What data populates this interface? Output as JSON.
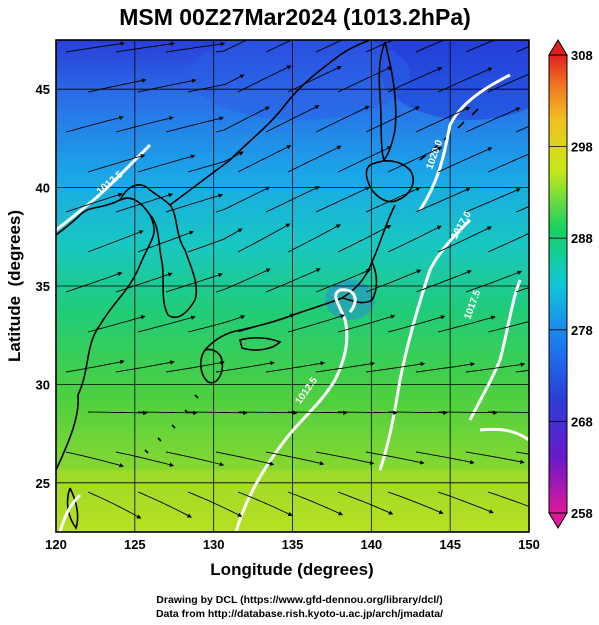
{
  "title": "MSM 00Z27Mar2024 (1013.2hPa)",
  "map": {
    "xlabel": "Longitude (degrees)",
    "ylabel": "Latitude  (degrees)",
    "lon_range": [
      120,
      150
    ],
    "lat_range": [
      22.5,
      47.5
    ],
    "x_ticks": [
      "120",
      "125",
      "130",
      "135",
      "140",
      "145",
      "150"
    ],
    "y_ticks": [
      "25",
      "30",
      "35",
      "40",
      "45"
    ],
    "grid": true,
    "field": "temperature (K)",
    "overlay": "wind streamlines",
    "contour_labels": [
      "1020.0",
      "1017.0",
      "1017.5",
      "1012.5",
      "1012.5"
    ]
  },
  "colorbar": {
    "ticks": [
      "308",
      "298",
      "288",
      "278",
      "268",
      "258"
    ],
    "range": [
      258,
      308
    ],
    "colors": [
      "#e0189a",
      "#4a1fc8",
      "#1a5ff0",
      "#10c8e0",
      "#18d060",
      "#c8e818",
      "#f0c020",
      "#f08020",
      "#e02020"
    ]
  },
  "footer": {
    "line1": "Drawing by DCL (https://www.gfd-dennou.org/library/dcl/)",
    "line2": "Data from http://database.rish.kyoto-u.ac.jp/arch/jmadata/"
  }
}
